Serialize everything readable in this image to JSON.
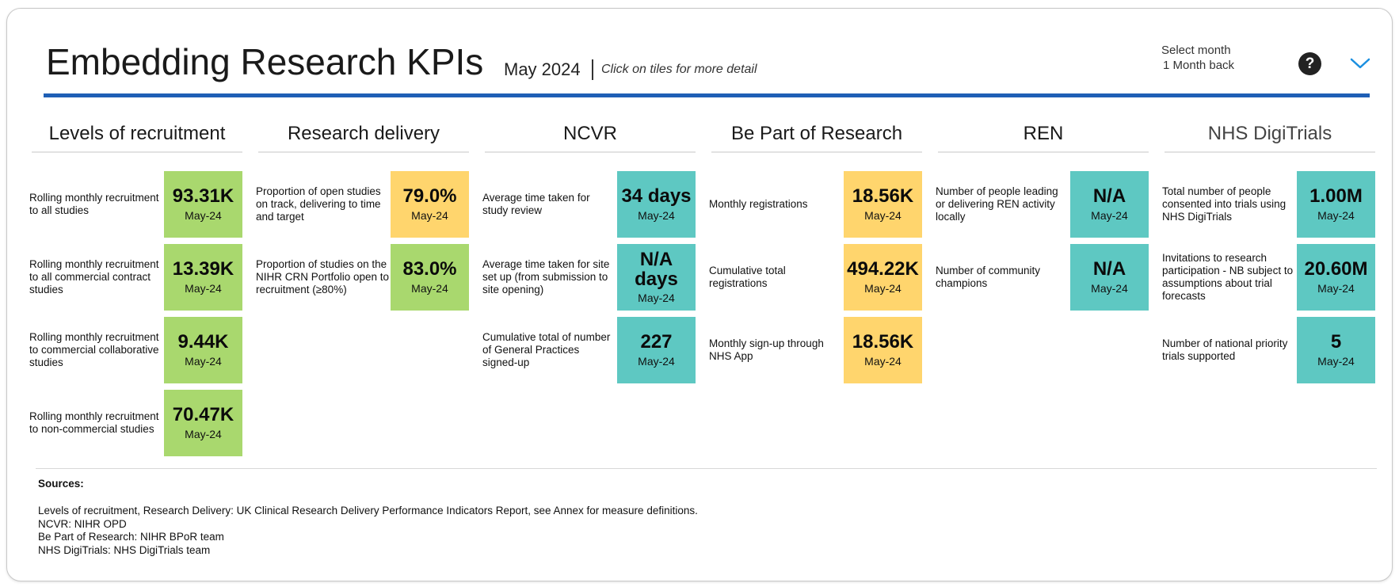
{
  "header": {
    "title": "Embedding Research KPIs",
    "month": "May 2024",
    "hint": "Click on tiles for more detail",
    "select_label": "Select month",
    "select_value": "1 Month back",
    "help_icon": "question-mark-icon",
    "menu_icon": "chevron-down-icon"
  },
  "colors": {
    "green": "#a9d86e",
    "amber": "#ffd56d",
    "teal": "#5ec8c2",
    "rule": "#1f5fb5"
  },
  "sections": [
    {
      "title": "Levels of recruitment",
      "items": [
        {
          "label": "Rolling monthly recruitment to all studies",
          "value": "93.31K",
          "period": "May-24",
          "status": "green"
        },
        {
          "label": "Rolling monthly recruitment to all commercial contract studies",
          "value": "13.39K",
          "period": "May-24",
          "status": "green"
        },
        {
          "label": "Rolling monthly recruitment to commercial collaborative studies",
          "value": "9.44K",
          "period": "May-24",
          "status": "green"
        },
        {
          "label": "Rolling monthly recruitment to non-commercial studies",
          "value": "70.47K",
          "period": "May-24",
          "status": "green"
        }
      ]
    },
    {
      "title": "Research delivery",
      "items": [
        {
          "label": "Proportion of open studies on track, delivering to time and target",
          "value": "79.0%",
          "period": "May-24",
          "status": "amber"
        },
        {
          "label": "Proportion of studies on the NIHR CRN Portfolio open to recruitment (≥80%)",
          "value": "83.0%",
          "period": "May-24",
          "status": "green"
        }
      ]
    },
    {
      "title": "NCVR",
      "items": [
        {
          "label": "Average time taken for study review",
          "value": "34 days",
          "period": "May-24",
          "status": "teal"
        },
        {
          "label": "Average time taken for site set up (from submission to site opening)",
          "value": "N/A days",
          "period": "May-24",
          "status": "teal"
        },
        {
          "label": "Cumulative total of number of General Practices signed-up",
          "value": "227",
          "period": "May-24",
          "status": "teal"
        }
      ]
    },
    {
      "title": "Be Part of Research",
      "items": [
        {
          "label": "Monthly registrations",
          "value": "18.56K",
          "period": "May-24",
          "status": "amber"
        },
        {
          "label": "Cumulative total registrations",
          "value": "494.22K",
          "period": "May-24",
          "status": "amber"
        },
        {
          "label": "Monthly sign-up through NHS App",
          "value": "18.56K",
          "period": "May-24",
          "status": "amber"
        }
      ]
    },
    {
      "title": "REN",
      "items": [
        {
          "label": "Number of people leading or delivering REN activity locally",
          "value": "N/A",
          "period": "May-24",
          "status": "teal"
        },
        {
          "label": "Number of community champions",
          "value": "N/A",
          "period": "May-24",
          "status": "teal"
        }
      ]
    },
    {
      "title": "NHS DigiTrials",
      "items": [
        {
          "label": "Total number of people consented into trials using NHS DigiTrials",
          "value": "1.00M",
          "period": "May-24",
          "status": "teal"
        },
        {
          "label": "Invitations to research participation - NB subject to assumptions about trial forecasts",
          "value": "20.60M",
          "period": "May-24",
          "status": "teal"
        },
        {
          "label": "Number of national priority trials supported",
          "value": "5",
          "period": "May-24",
          "status": "teal"
        }
      ]
    }
  ],
  "sources": {
    "title": "Sources:",
    "lines": [
      "Levels of recruitment, Research Delivery: UK Clinical Research Delivery Performance Indicators Report, see Annex for measure definitions.",
      "NCVR: NIHR OPD",
      "Be Part of Research: NIHR BPoR team",
      "NHS DigiTrials: NHS DigiTrials team"
    ]
  }
}
